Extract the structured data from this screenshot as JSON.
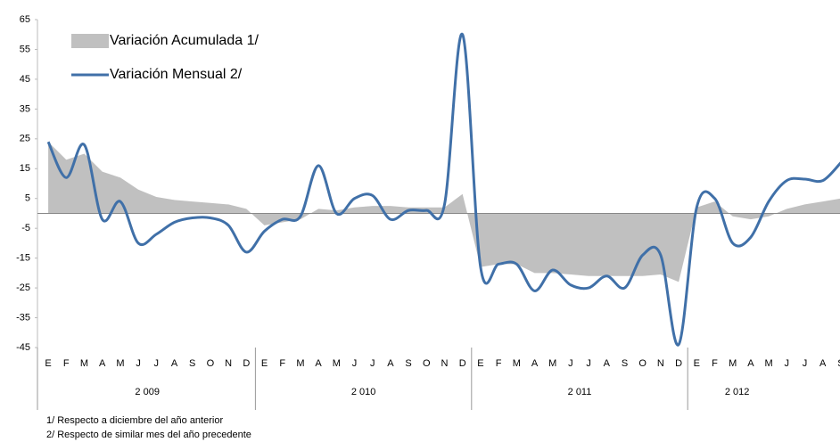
{
  "chart_data": {
    "type": "line",
    "categories": [
      "E",
      "F",
      "M",
      "A",
      "M",
      "J",
      "J",
      "A",
      "S",
      "O",
      "N",
      "D",
      "E",
      "F",
      "M",
      "A",
      "M",
      "J",
      "J",
      "A",
      "S",
      "O",
      "N",
      "D",
      "E",
      "F",
      "M",
      "A",
      "M",
      "J",
      "J",
      "A",
      "S",
      "O",
      "N",
      "D",
      "E",
      "F",
      "M",
      "A",
      "M",
      "J",
      "J",
      "A",
      "S"
    ],
    "groups": [
      "2 009",
      "2 010",
      "2 011",
      "2 012"
    ],
    "series": [
      {
        "name": "Variación Acumulada 1/",
        "kind": "area",
        "color": "#c0c0c0",
        "values": [
          24,
          18,
          20,
          14,
          12,
          8,
          5.5,
          4.5,
          4,
          3.5,
          3,
          1.5,
          -4,
          -3,
          -2,
          1.5,
          1,
          2,
          2.5,
          2.5,
          2,
          2,
          2,
          6.5,
          -18,
          -17,
          -17,
          -20,
          -20,
          -20.5,
          -21,
          -21,
          -21,
          -21,
          -20.5,
          -23,
          2,
          4,
          -1,
          -2,
          -1,
          1.5,
          3,
          4,
          5
        ]
      },
      {
        "name": "Variación Mensual 2/",
        "kind": "line",
        "color": "#4070a8",
        "values": [
          24,
          12,
          23,
          -2,
          4,
          -10,
          -7,
          -3,
          -1.5,
          -1.5,
          -4,
          -13,
          -6,
          -2,
          -1,
          16,
          0,
          5,
          6,
          -2,
          1,
          1,
          3,
          60,
          -18,
          -17,
          -17,
          -26,
          -19,
          -24,
          -25,
          -21,
          -25,
          -14,
          -14,
          -44,
          2,
          5,
          -10,
          -8,
          4,
          11,
          11.5,
          11,
          17
        ]
      }
    ],
    "ylim": [
      -45,
      65
    ],
    "yticks": [
      -45,
      -35,
      -25,
      -15,
      -5,
      5,
      15,
      25,
      35,
      45,
      55,
      65
    ],
    "legend": "top-left",
    "notes": [
      "1/ Respecto a diciembre del año  anterior",
      "2/ Respecto  de similar mes del año  precedente"
    ]
  }
}
